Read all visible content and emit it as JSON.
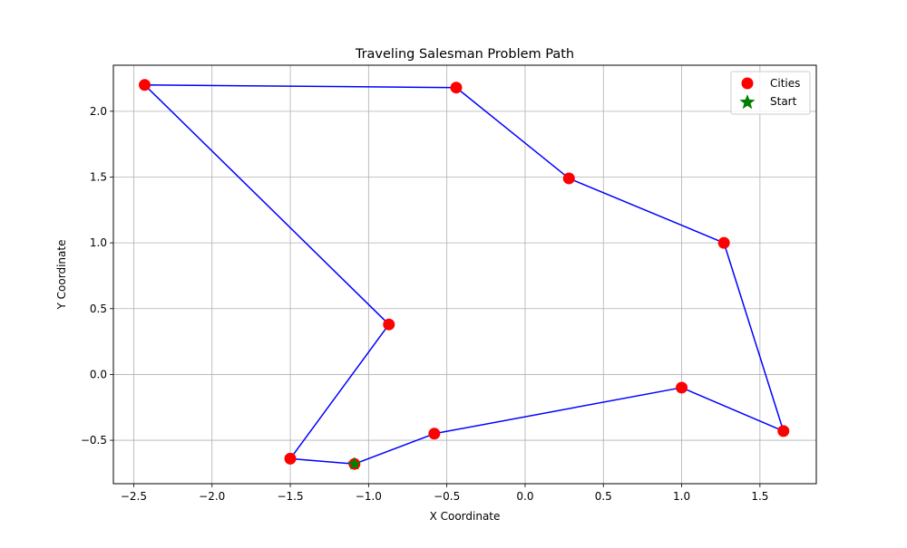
{
  "chart_data": {
    "type": "scatter",
    "title": "Traveling Salesman Problem Path",
    "xlabel": "X Coordinate",
    "ylabel": "Y Coordinate",
    "xlim": [
      -2.63,
      1.86
    ],
    "ylim": [
      -0.83,
      2.35
    ],
    "x_ticks": [
      -2.5,
      -2.0,
      -1.5,
      -1.0,
      -0.5,
      0.0,
      0.5,
      1.0,
      1.5
    ],
    "x_tick_labels": [
      "−2.5",
      "−2.0",
      "−1.5",
      "−1.0",
      "−0.5",
      "0.0",
      "0.5",
      "1.0",
      "1.5"
    ],
    "y_ticks": [
      -0.5,
      0.0,
      0.5,
      1.0,
      1.5,
      2.0
    ],
    "y_tick_labels": [
      "−0.5",
      "0.0",
      "0.5",
      "1.0",
      "1.5",
      "2.0"
    ],
    "grid": true,
    "legend_position": "top-right",
    "series": [
      {
        "name": "Cities",
        "marker": "circle",
        "color": "#ff0000",
        "points": [
          {
            "x": -1.09,
            "y": -0.68
          },
          {
            "x": -1.5,
            "y": -0.64
          },
          {
            "x": -0.87,
            "y": 0.38
          },
          {
            "x": -2.43,
            "y": 2.2
          },
          {
            "x": -0.44,
            "y": 2.18
          },
          {
            "x": 0.28,
            "y": 1.49
          },
          {
            "x": 1.27,
            "y": 1.0
          },
          {
            "x": 1.65,
            "y": -0.43
          },
          {
            "x": 1.0,
            "y": -0.1
          },
          {
            "x": -0.58,
            "y": -0.45
          }
        ]
      },
      {
        "name": "Start",
        "marker": "star",
        "color": "#008000",
        "points": [
          {
            "x": -1.09,
            "y": -0.68
          }
        ]
      }
    ],
    "path": {
      "color": "#0000ff",
      "order": [
        0,
        1,
        2,
        3,
        4,
        5,
        6,
        7,
        8,
        9,
        0
      ]
    }
  }
}
